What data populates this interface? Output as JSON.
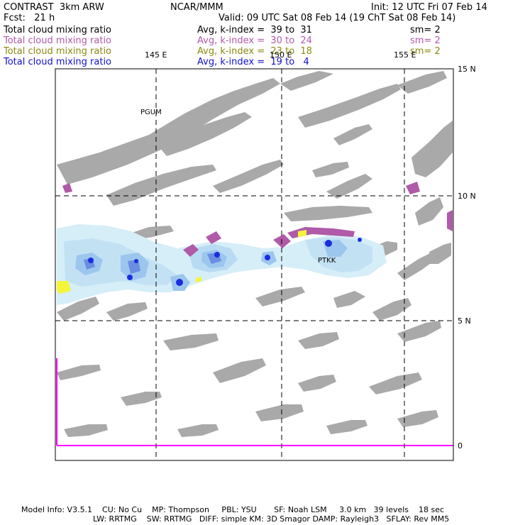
{
  "header": {
    "model": "CONTRAST  3km ARW",
    "org": "NCAR/MMM",
    "init": "Init: 12 UTC Fri 07 Feb 14",
    "fcst": "Fcst:   21 h",
    "valid": "Valid: 09 UTC Sat 08 Feb 14 (19 ChT Sat 08 Feb 14)"
  },
  "legend": [
    {
      "field": "Total cloud mixing ratio",
      "kindex": "Avg, k-index =  39 to  31",
      "sm": "sm= 2",
      "color": "#000000"
    },
    {
      "field": "Total cloud mixing ratio",
      "kindex": "Avg, k-index =  30 to  24",
      "sm": "sm= 2",
      "color": "#b05aa8"
    },
    {
      "field": "Total cloud mixing ratio",
      "kindex": "Avg, k-index =  23 to  18",
      "sm": "sm= 2",
      "color": "#8a8a10"
    },
    {
      "field": "Total cloud mixing ratio",
      "kindex": "Avg, k-index =  19 to   4",
      "sm": "",
      "color": "#1010d0"
    }
  ],
  "map": {
    "lon_labels": [
      "145 E",
      "150 E",
      "155 E"
    ],
    "lat_labels": [
      "15 N",
      "10 N",
      "5 N",
      "0"
    ],
    "stations": [
      "PGUM",
      "PTKK"
    ]
  },
  "footer": {
    "line1": "Model Info: V3.5.1    CU: No Cu    MP: Thompson     PBL: YSU       SF: Noah LSM     3.0 km   39 levels    18 sec",
    "line2": "LW: RRTMG    SW: RRTMG   DIFF: simple KM: 3D Smagor DAMP: Rayleigh3   SFLAY: Rev MM5"
  }
}
